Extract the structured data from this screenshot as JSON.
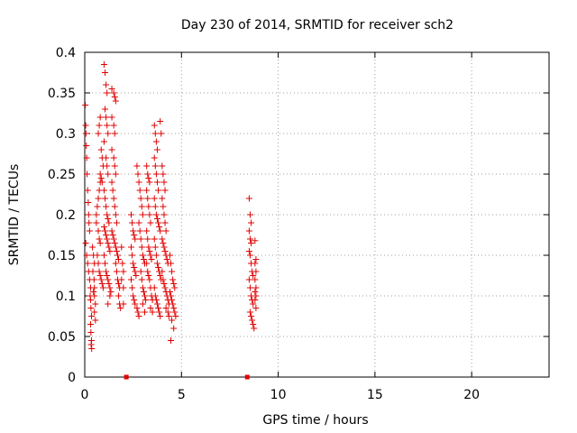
{
  "chart_data": {
    "type": "scatter",
    "title": "Day 230 of 2014, SRMTID for receiver sch2",
    "xlabel": "GPS time / hours",
    "ylabel": "SRMTID / TECUs",
    "xlim": [
      0,
      24
    ],
    "ylim": [
      0,
      0.4
    ],
    "xticks": [
      0,
      5,
      10,
      15,
      20
    ],
    "xtick_labels": [
      "0",
      "5",
      "10",
      "15",
      "20"
    ],
    "yticks": [
      0,
      0.05,
      0.1,
      0.15,
      0.2,
      0.25,
      0.3,
      0.35,
      0.4
    ],
    "ytick_labels": [
      "0",
      "0.05",
      "0.1",
      "0.15",
      "0.2",
      "0.25",
      "0.3",
      "0.35",
      "0.4"
    ],
    "grid": true,
    "marker": "+",
    "series": [
      {
        "name": "SRMTID",
        "color": "#e00000",
        "points": [
          [
            0.03,
            0.335
          ],
          [
            0.05,
            0.31
          ],
          [
            0.06,
            0.3
          ],
          [
            0.08,
            0.285
          ],
          [
            0.1,
            0.27
          ],
          [
            0.12,
            0.25
          ],
          [
            0.15,
            0.23
          ],
          [
            0.18,
            0.215
          ],
          [
            0.2,
            0.2
          ],
          [
            0.22,
            0.19
          ],
          [
            0.25,
            0.18
          ],
          [
            0.05,
            0.165
          ],
          [
            0.1,
            0.15
          ],
          [
            0.15,
            0.14
          ],
          [
            0.2,
            0.13
          ],
          [
            0.25,
            0.12
          ],
          [
            0.3,
            0.11
          ],
          [
            0.28,
            0.1
          ],
          [
            0.3,
            0.095
          ],
          [
            0.32,
            0.085
          ],
          [
            0.35,
            0.075
          ],
          [
            0.3,
            0.065
          ],
          [
            0.32,
            0.055
          ],
          [
            0.35,
            0.045
          ],
          [
            0.33,
            0.04
          ],
          [
            0.36,
            0.035
          ],
          [
            0.4,
            0.16
          ],
          [
            0.45,
            0.15
          ],
          [
            0.5,
            0.14
          ],
          [
            0.42,
            0.13
          ],
          [
            0.48,
            0.12
          ],
          [
            0.5,
            0.11
          ],
          [
            0.45,
            0.105
          ],
          [
            0.5,
            0.1
          ],
          [
            0.55,
            0.09
          ],
          [
            0.5,
            0.08
          ],
          [
            0.55,
            0.07
          ],
          [
            0.6,
            0.2
          ],
          [
            0.65,
            0.21
          ],
          [
            0.7,
            0.22
          ],
          [
            0.75,
            0.23
          ],
          [
            0.8,
            0.24
          ],
          [
            0.6,
            0.19
          ],
          [
            0.7,
            0.18
          ],
          [
            0.75,
            0.17
          ],
          [
            0.8,
            0.165
          ],
          [
            0.65,
            0.15
          ],
          [
            0.7,
            0.14
          ],
          [
            0.75,
            0.13
          ],
          [
            0.8,
            0.125
          ],
          [
            0.85,
            0.12
          ],
          [
            0.9,
            0.115
          ],
          [
            0.95,
            0.11
          ],
          [
            0.7,
            0.3
          ],
          [
            0.75,
            0.31
          ],
          [
            0.8,
            0.32
          ],
          [
            0.85,
            0.28
          ],
          [
            0.9,
            0.27
          ],
          [
            0.95,
            0.26
          ],
          [
            0.8,
            0.25
          ],
          [
            0.85,
            0.245
          ],
          [
            0.9,
            0.24
          ],
          [
            1.0,
            0.385
          ],
          [
            1.05,
            0.375
          ],
          [
            1.1,
            0.36
          ],
          [
            1.15,
            0.35
          ],
          [
            1.05,
            0.33
          ],
          [
            1.1,
            0.32
          ],
          [
            1.15,
            0.31
          ],
          [
            1.2,
            0.3
          ],
          [
            1.0,
            0.29
          ],
          [
            1.1,
            0.27
          ],
          [
            1.15,
            0.26
          ],
          [
            1.2,
            0.25
          ],
          [
            1.0,
            0.23
          ],
          [
            1.05,
            0.22
          ],
          [
            1.1,
            0.21
          ],
          [
            1.15,
            0.2
          ],
          [
            1.2,
            0.195
          ],
          [
            1.25,
            0.19
          ],
          [
            1.0,
            0.185
          ],
          [
            1.05,
            0.18
          ],
          [
            1.1,
            0.175
          ],
          [
            1.15,
            0.17
          ],
          [
            1.2,
            0.165
          ],
          [
            1.25,
            0.16
          ],
          [
            1.3,
            0.155
          ],
          [
            1.0,
            0.15
          ],
          [
            1.05,
            0.14
          ],
          [
            1.1,
            0.13
          ],
          [
            1.15,
            0.125
          ],
          [
            1.2,
            0.12
          ],
          [
            1.25,
            0.115
          ],
          [
            1.3,
            0.11
          ],
          [
            1.35,
            0.105
          ],
          [
            1.2,
            0.09
          ],
          [
            1.3,
            0.1
          ],
          [
            1.4,
            0.355
          ],
          [
            1.5,
            0.35
          ],
          [
            1.55,
            0.345
          ],
          [
            1.6,
            0.34
          ],
          [
            1.4,
            0.32
          ],
          [
            1.5,
            0.31
          ],
          [
            1.55,
            0.3
          ],
          [
            1.4,
            0.28
          ],
          [
            1.5,
            0.27
          ],
          [
            1.55,
            0.26
          ],
          [
            1.6,
            0.25
          ],
          [
            1.4,
            0.24
          ],
          [
            1.45,
            0.23
          ],
          [
            1.5,
            0.22
          ],
          [
            1.55,
            0.21
          ],
          [
            1.6,
            0.2
          ],
          [
            1.65,
            0.19
          ],
          [
            1.4,
            0.18
          ],
          [
            1.45,
            0.175
          ],
          [
            1.5,
            0.17
          ],
          [
            1.55,
            0.165
          ],
          [
            1.6,
            0.16
          ],
          [
            1.65,
            0.155
          ],
          [
            1.7,
            0.15
          ],
          [
            1.75,
            0.145
          ],
          [
            1.6,
            0.14
          ],
          [
            1.65,
            0.13
          ],
          [
            1.7,
            0.12
          ],
          [
            1.75,
            0.115
          ],
          [
            1.8,
            0.11
          ],
          [
            1.75,
            0.1
          ],
          [
            1.8,
            0.09
          ],
          [
            1.85,
            0.085
          ],
          [
            1.9,
            0.12
          ],
          [
            1.9,
            0.16
          ],
          [
            1.95,
            0.14
          ],
          [
            2.0,
            0.13
          ],
          [
            2.0,
            0.11
          ],
          [
            2.0,
            0.09
          ],
          [
            2.4,
            0.2
          ],
          [
            2.45,
            0.19
          ],
          [
            2.5,
            0.18
          ],
          [
            2.55,
            0.175
          ],
          [
            2.6,
            0.17
          ],
          [
            2.4,
            0.16
          ],
          [
            2.45,
            0.15
          ],
          [
            2.5,
            0.14
          ],
          [
            2.55,
            0.135
          ],
          [
            2.6,
            0.13
          ],
          [
            2.65,
            0.125
          ],
          [
            2.4,
            0.12
          ],
          [
            2.45,
            0.11
          ],
          [
            2.5,
            0.1
          ],
          [
            2.55,
            0.095
          ],
          [
            2.6,
            0.09
          ],
          [
            2.7,
            0.085
          ],
          [
            2.75,
            0.08
          ],
          [
            2.8,
            0.075
          ],
          [
            2.7,
            0.26
          ],
          [
            2.75,
            0.25
          ],
          [
            2.8,
            0.24
          ],
          [
            2.85,
            0.23
          ],
          [
            2.9,
            0.22
          ],
          [
            2.95,
            0.21
          ],
          [
            3.0,
            0.2
          ],
          [
            2.8,
            0.19
          ],
          [
            2.85,
            0.18
          ],
          [
            2.9,
            0.17
          ],
          [
            2.95,
            0.16
          ],
          [
            3.0,
            0.15
          ],
          [
            3.05,
            0.145
          ],
          [
            3.1,
            0.14
          ],
          [
            2.9,
            0.13
          ],
          [
            2.95,
            0.12
          ],
          [
            3.0,
            0.11
          ],
          [
            3.05,
            0.105
          ],
          [
            3.1,
            0.1
          ],
          [
            3.15,
            0.095
          ],
          [
            3.0,
            0.09
          ],
          [
            3.1,
            0.08
          ],
          [
            3.2,
            0.26
          ],
          [
            3.25,
            0.25
          ],
          [
            3.3,
            0.245
          ],
          [
            3.35,
            0.24
          ],
          [
            3.2,
            0.23
          ],
          [
            3.25,
            0.22
          ],
          [
            3.3,
            0.21
          ],
          [
            3.35,
            0.2
          ],
          [
            3.4,
            0.19
          ],
          [
            3.2,
            0.18
          ],
          [
            3.25,
            0.17
          ],
          [
            3.3,
            0.16
          ],
          [
            3.35,
            0.155
          ],
          [
            3.4,
            0.15
          ],
          [
            3.45,
            0.145
          ],
          [
            3.2,
            0.14
          ],
          [
            3.25,
            0.13
          ],
          [
            3.3,
            0.125
          ],
          [
            3.35,
            0.12
          ],
          [
            3.4,
            0.11
          ],
          [
            3.45,
            0.1
          ],
          [
            3.5,
            0.095
          ],
          [
            3.4,
            0.085
          ],
          [
            3.5,
            0.08
          ],
          [
            3.6,
            0.31
          ],
          [
            3.65,
            0.3
          ],
          [
            3.7,
            0.29
          ],
          [
            3.75,
            0.28
          ],
          [
            3.6,
            0.27
          ],
          [
            3.65,
            0.26
          ],
          [
            3.7,
            0.25
          ],
          [
            3.75,
            0.24
          ],
          [
            3.8,
            0.23
          ],
          [
            3.9,
            0.315
          ],
          [
            3.95,
            0.3
          ],
          [
            3.6,
            0.22
          ],
          [
            3.65,
            0.21
          ],
          [
            3.7,
            0.2
          ],
          [
            3.75,
            0.195
          ],
          [
            3.8,
            0.19
          ],
          [
            3.85,
            0.185
          ],
          [
            3.9,
            0.18
          ],
          [
            3.6,
            0.17
          ],
          [
            3.65,
            0.16
          ],
          [
            3.7,
            0.15
          ],
          [
            3.75,
            0.14
          ],
          [
            3.8,
            0.135
          ],
          [
            3.85,
            0.13
          ],
          [
            3.9,
            0.125
          ],
          [
            3.95,
            0.12
          ],
          [
            3.6,
            0.11
          ],
          [
            3.65,
            0.1
          ],
          [
            3.7,
            0.095
          ],
          [
            3.75,
            0.09
          ],
          [
            3.8,
            0.085
          ],
          [
            3.85,
            0.08
          ],
          [
            3.9,
            0.075
          ],
          [
            4.0,
            0.26
          ],
          [
            4.05,
            0.25
          ],
          [
            4.1,
            0.24
          ],
          [
            4.15,
            0.23
          ],
          [
            4.0,
            0.22
          ],
          [
            4.05,
            0.21
          ],
          [
            4.1,
            0.2
          ],
          [
            4.15,
            0.19
          ],
          [
            4.2,
            0.18
          ],
          [
            4.0,
            0.17
          ],
          [
            4.05,
            0.165
          ],
          [
            4.1,
            0.16
          ],
          [
            4.15,
            0.155
          ],
          [
            4.2,
            0.15
          ],
          [
            4.25,
            0.145
          ],
          [
            4.3,
            0.14
          ],
          [
            4.0,
            0.13
          ],
          [
            4.05,
            0.12
          ],
          [
            4.1,
            0.115
          ],
          [
            4.15,
            0.11
          ],
          [
            4.2,
            0.105
          ],
          [
            4.25,
            0.1
          ],
          [
            4.3,
            0.095
          ],
          [
            4.35,
            0.09
          ],
          [
            4.2,
            0.085
          ],
          [
            4.3,
            0.08
          ],
          [
            4.35,
            0.075
          ],
          [
            4.4,
            0.15
          ],
          [
            4.45,
            0.14
          ],
          [
            4.5,
            0.13
          ],
          [
            4.55,
            0.12
          ],
          [
            4.6,
            0.115
          ],
          [
            4.65,
            0.11
          ],
          [
            4.4,
            0.105
          ],
          [
            4.45,
            0.1
          ],
          [
            4.5,
            0.095
          ],
          [
            4.55,
            0.09
          ],
          [
            4.6,
            0.085
          ],
          [
            4.65,
            0.08
          ],
          [
            4.7,
            0.075
          ],
          [
            4.5,
            0.07
          ],
          [
            4.45,
            0.045
          ],
          [
            4.6,
            0.06
          ],
          [
            8.5,
            0.22
          ],
          [
            8.55,
            0.2
          ],
          [
            8.6,
            0.19
          ],
          [
            8.5,
            0.18
          ],
          [
            8.55,
            0.17
          ],
          [
            8.6,
            0.165
          ],
          [
            8.5,
            0.155
          ],
          [
            8.55,
            0.15
          ],
          [
            8.6,
            0.14
          ],
          [
            8.65,
            0.13
          ],
          [
            8.7,
            0.125
          ],
          [
            8.5,
            0.12
          ],
          [
            8.55,
            0.11
          ],
          [
            8.6,
            0.1
          ],
          [
            8.65,
            0.095
          ],
          [
            8.7,
            0.09
          ],
          [
            8.55,
            0.08
          ],
          [
            8.6,
            0.075
          ],
          [
            8.65,
            0.07
          ],
          [
            8.7,
            0.065
          ],
          [
            8.75,
            0.06
          ],
          [
            8.8,
            0.168
          ],
          [
            8.85,
            0.145
          ],
          [
            8.8,
            0.14
          ],
          [
            8.85,
            0.13
          ],
          [
            8.8,
            0.12
          ],
          [
            8.85,
            0.11
          ],
          [
            8.8,
            0.105
          ],
          [
            8.85,
            0.1
          ],
          [
            8.8,
            0.095
          ],
          [
            8.85,
            0.085
          ]
        ]
      }
    ],
    "zero_markers": [
      [
        2.15,
        0
      ],
      [
        8.4,
        0
      ]
    ]
  }
}
